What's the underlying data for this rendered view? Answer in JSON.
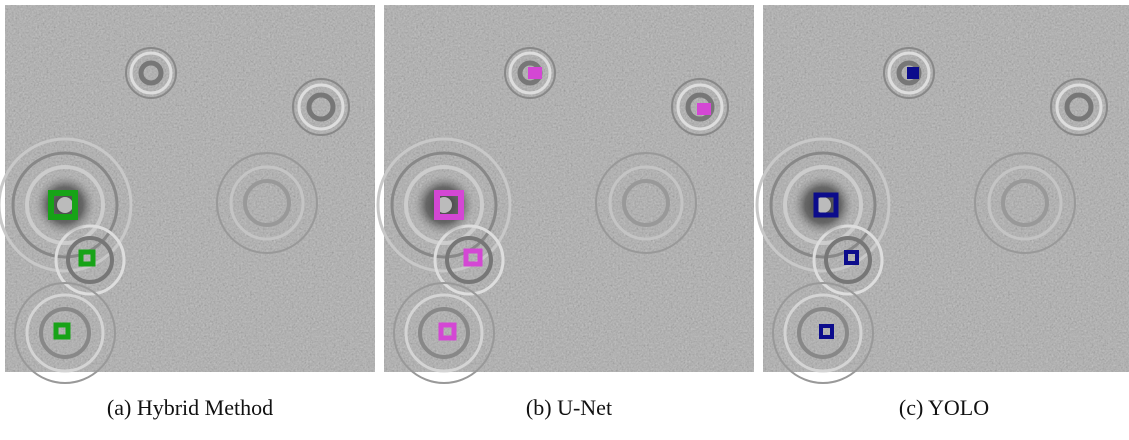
{
  "panels": [
    {
      "caption": "(a) Hybrid Method"
    },
    {
      "caption": "(b) U-Net"
    },
    {
      "caption": "(c) YOLO"
    }
  ]
}
